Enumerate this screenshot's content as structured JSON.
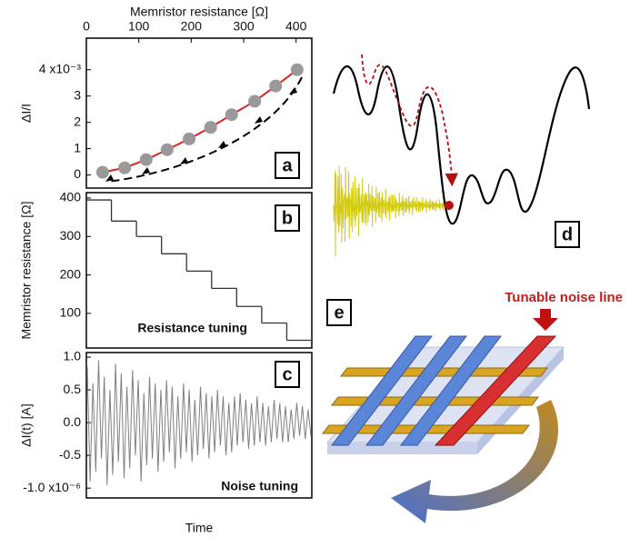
{
  "chart_data": [
    {
      "type": "scatter",
      "x_label": "Memristor resistance [Ω]",
      "y_label": "ΔI/I",
      "panel_label": "a",
      "x": [
        31,
        73,
        114,
        154,
        196,
        237,
        277,
        321,
        361,
        402
      ],
      "values": [
        0.1,
        0.27,
        0.58,
        0.96,
        1.37,
        1.81,
        2.29,
        2.8,
        3.38,
        4.0
      ],
      "color": "#999999",
      "line_color": "#e02020",
      "xlim": [
        0,
        430
      ],
      "xticks": [
        0,
        100,
        200,
        300,
        400
      ],
      "ylim": [
        -0.5,
        5.2
      ],
      "yticks": [
        0,
        1,
        2,
        3,
        {
          "value": 4,
          "label": "4 x10⁻³"
        }
      ]
    },
    {
      "type": "step",
      "y_label": "Memristor resistance [Ω]",
      "panel_label": "b",
      "annotation": "Resistance tuning",
      "values": [
        395,
        340,
        300,
        255,
        210,
        165,
        118,
        75,
        30
      ],
      "color": "#333333",
      "ylim": [
        10,
        414
      ],
      "yticks": [
        100,
        200,
        300,
        400
      ]
    },
    {
      "type": "line",
      "y_label": "ΔI(t) [A]",
      "x_label": "Time",
      "panel_label": "c",
      "annotation": "Noise tuning",
      "values": [
        0.85,
        -0.9,
        0.6,
        -0.75,
        0.95,
        -0.55,
        0.7,
        -0.95,
        0.5,
        -0.8,
        0.9,
        -0.6,
        0.75,
        -0.85,
        0.55,
        -0.7,
        0.8,
        -0.5,
        0.65,
        -0.9,
        0.45,
        -0.65,
        0.7,
        -0.55,
        0.6,
        -0.75,
        0.5,
        -0.6,
        0.65,
        -0.45,
        0.55,
        -0.7,
        0.4,
        -0.55,
        0.6,
        -0.45,
        0.5,
        -0.6,
        0.35,
        -0.5,
        0.55,
        -0.4,
        0.45,
        -0.55,
        0.4,
        -0.45,
        0.5,
        -0.35,
        0.4,
        -0.5,
        0.3,
        -0.45,
        0.4,
        -0.35,
        0.45,
        -0.3,
        0.35,
        -0.4,
        0.3,
        -0.35,
        0.4,
        -0.3,
        0.3,
        -0.35,
        0.25,
        -0.3,
        0.35,
        -0.25,
        0.3,
        -0.3,
        0.25,
        -0.3,
        0.2,
        -0.25,
        0.3,
        -0.2,
        0.25,
        -0.25,
        0.2,
        -0.2
      ],
      "color": "#808080",
      "ylim": [
        -1.15,
        1.07
      ],
      "yticks": [
        {
          "value": 1,
          "label": "1.0"
        },
        0.5,
        {
          "value": 0,
          "label": "0.0"
        },
        -0.5,
        {
          "value": -1,
          "label": "-1.0 x10⁻⁶"
        }
      ]
    }
  ],
  "panel_d": {
    "label": "d"
  },
  "panel_e": {
    "label": "e",
    "annotation": "Tunable noise line"
  }
}
